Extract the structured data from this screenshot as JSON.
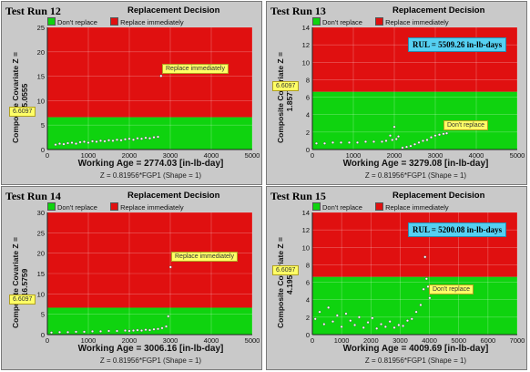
{
  "colors": {
    "green": "#0fd30f",
    "red": "#e01010",
    "panel_bg": "#c9c9c9",
    "points": "#ffffff",
    "callout": "#ffff66",
    "rul_box": "#55d0f2"
  },
  "legend": {
    "dont_replace": "Don't replace",
    "replace_immediately": "Replace immediately"
  },
  "panels": [
    {
      "run_title": "Test Run 12",
      "decision_title": "Replacement Decision",
      "ylabel": "Composite Covariate Z = 15.0555",
      "xlabel": "Working Age = 2774.03 [in-lb-day]",
      "formula": "Z = 0.81956*FGP1    (Shape = 1)",
      "threshold_label": "6.6097",
      "callout": "Replace immediately",
      "rul": null
    },
    {
      "run_title": "Test Run 13",
      "decision_title": "Replacement Decision",
      "ylabel": "Composite Covariate Z = 1.85779",
      "xlabel": "Working Age = 3279.08 [in-lb-day]",
      "formula": "Z = 0.81956*FGP1    (Shape = 1)",
      "threshold_label": "6.6097",
      "callout": "Don't replace",
      "rul": "RUL = 5509.26 in-lb-days"
    },
    {
      "run_title": "Test Run 14",
      "decision_title": "Replacement Decision",
      "ylabel": "Composite Covariate Z = 16.5759",
      "xlabel": "Working Age = 3006.16 [in-lb-day]",
      "formula": "Z = 0.81956*FGP1    (Shape = 1)",
      "threshold_label": "6.6097",
      "callout": "Replace immediately",
      "rul": null
    },
    {
      "run_title": "Test Run 15",
      "decision_title": "Replacement Decision",
      "ylabel": "Composite Covariate Z = 4.1956",
      "xlabel": "Working Age = 4009.69 [in-lb-day]",
      "formula": "Z = 0.81956*FGP1    (Shape = 1)",
      "threshold_label": "6.6097",
      "callout": "Don't replace",
      "rul": "RUL = 5200.08 in-lb-days"
    }
  ],
  "chart_data": [
    {
      "type": "scatter",
      "title": "Replacement Decision",
      "xlabel": "Working Age = 2774.03 [in-lb-day]",
      "ylabel": "Composite Covariate Z = 15.0555",
      "xlim": [
        0,
        5000
      ],
      "ylim": [
        0,
        25
      ],
      "xticks": [
        0,
        1000,
        2000,
        3000,
        4000,
        5000
      ],
      "yticks": [
        0,
        5,
        10,
        15,
        20,
        25
      ],
      "threshold": 6.6097,
      "regions": [
        {
          "name": "Don't replace",
          "below": 6.6097
        },
        {
          "name": "Replace immediately",
          "above": 6.6097
        }
      ],
      "x": [
        200,
        300,
        400,
        500,
        600,
        700,
        800,
        900,
        1000,
        1100,
        1200,
        1300,
        1400,
        1500,
        1600,
        1700,
        1800,
        1900,
        2000,
        2100,
        2200,
        2300,
        2400,
        2500,
        2600,
        2700,
        2774
      ],
      "y": [
        1.0,
        1.2,
        1.1,
        1.3,
        1.4,
        1.2,
        1.5,
        1.6,
        1.4,
        1.7,
        1.6,
        1.8,
        1.7,
        1.9,
        1.8,
        2.0,
        1.9,
        2.1,
        2.2,
        2.0,
        2.3,
        2.2,
        2.4,
        2.3,
        2.5,
        2.6,
        15.06
      ]
    },
    {
      "type": "scatter",
      "title": "Replacement Decision",
      "xlabel": "Working Age = 3279.08 [in-lb-day]",
      "ylabel": "Composite Covariate Z = 1.85779",
      "xlim": [
        0,
        5000
      ],
      "ylim": [
        0,
        14
      ],
      "xticks": [
        0,
        1000,
        2000,
        3000,
        4000,
        5000
      ],
      "yticks": [
        0,
        2,
        4,
        6,
        8,
        10,
        12,
        14
      ],
      "threshold": 6.6097,
      "regions": [
        {
          "name": "Don't replace",
          "below": 6.6097
        },
        {
          "name": "Replace immediately",
          "above": 6.6097
        }
      ],
      "x": [
        100,
        300,
        500,
        700,
        900,
        1100,
        1300,
        1500,
        1700,
        1800,
        1900,
        1950,
        2000,
        2050,
        2100,
        2200,
        2300,
        2400,
        2500,
        2600,
        2700,
        2800,
        2900,
        3000,
        3100,
        3200,
        3279
      ],
      "y": [
        0.7,
        0.7,
        0.8,
        0.8,
        0.8,
        0.8,
        0.9,
        0.9,
        0.9,
        1.0,
        1.6,
        1.1,
        2.6,
        1.2,
        1.5,
        0.2,
        0.3,
        0.4,
        0.6,
        0.8,
        1.0,
        1.1,
        1.4,
        1.6,
        1.7,
        1.8,
        1.86
      ]
    },
    {
      "type": "scatter",
      "title": "Replacement Decision",
      "xlabel": "Working Age = 3006.16 [in-lb-day]",
      "ylabel": "Composite Covariate Z = 16.5759",
      "xlim": [
        0,
        5000
      ],
      "ylim": [
        0,
        30
      ],
      "xticks": [
        0,
        1000,
        2000,
        3000,
        4000,
        5000
      ],
      "yticks": [
        0,
        5,
        10,
        15,
        20,
        25,
        30
      ],
      "threshold": 6.6097,
      "regions": [
        {
          "name": "Don't replace",
          "below": 6.6097
        },
        {
          "name": "Replace immediately",
          "above": 6.6097
        }
      ],
      "x": [
        100,
        300,
        500,
        700,
        900,
        1100,
        1300,
        1500,
        1700,
        1900,
        2000,
        2100,
        2200,
        2300,
        2400,
        2500,
        2600,
        2700,
        2800,
        2900,
        2950,
        3006
      ],
      "y": [
        0.5,
        0.6,
        0.6,
        0.7,
        0.7,
        0.8,
        0.8,
        0.9,
        0.9,
        1.0,
        0.9,
        1.0,
        1.1,
        1.0,
        1.2,
        1.1,
        1.3,
        1.4,
        1.6,
        2.0,
        4.5,
        16.58
      ]
    },
    {
      "type": "scatter",
      "title": "Replacement Decision",
      "xlabel": "Working Age = 4009.69 [in-lb-day]",
      "ylabel": "Composite Covariate Z = 4.1956",
      "xlim": [
        0,
        7000
      ],
      "ylim": [
        0,
        14
      ],
      "xticks": [
        0,
        1000,
        2000,
        3000,
        4000,
        5000,
        6000,
        7000
      ],
      "yticks": [
        0,
        2,
        4,
        6,
        8,
        10,
        12,
        14
      ],
      "threshold": 6.6097,
      "regions": [
        {
          "name": "Don't replace",
          "below": 6.6097
        },
        {
          "name": "Replace immediately",
          "above": 6.6097
        }
      ],
      "x": [
        100,
        250,
        400,
        550,
        700,
        850,
        1000,
        1150,
        1300,
        1450,
        1600,
        1750,
        1900,
        2050,
        2200,
        2350,
        2500,
        2650,
        2800,
        2950,
        3100,
        3250,
        3400,
        3550,
        3700,
        3800,
        3850,
        3900,
        3950,
        4009
      ],
      "y": [
        1.8,
        2.6,
        1.2,
        3.1,
        1.5,
        2.2,
        0.9,
        2.4,
        1.6,
        1.1,
        2.0,
        0.8,
        1.4,
        1.9,
        0.7,
        1.2,
        0.9,
        1.5,
        0.8,
        1.1,
        1.0,
        1.6,
        1.8,
        2.6,
        3.4,
        5.2,
        8.9,
        6.4,
        5.5,
        4.2
      ]
    }
  ]
}
